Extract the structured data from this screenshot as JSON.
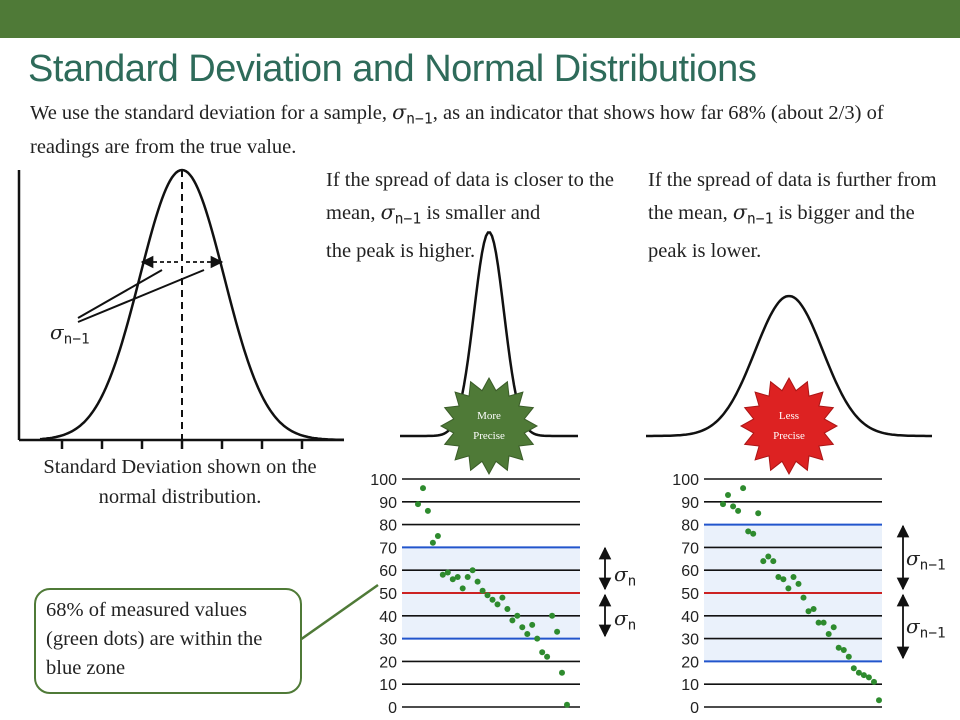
{
  "slide": {
    "title": "Standard Deviation and Normal Distributions",
    "intro_part1": "We use the standard deviation for a sample,",
    "intro_part2": ", as an indicator that shows how far 68% (about 2/3) of readings are from the true value.",
    "sigma_symbol": "σ",
    "sub_n_minus_1": "n−1",
    "sub_n": "n",
    "left_para_part1": "If the spread of data is closer to the mean,",
    "left_para_part2": "is smaller and",
    "left_para_part3": "the peak is higher.",
    "right_para_part1": "If the spread of data is further from the mean,",
    "right_para_part2": "is bigger and the peak is lower.",
    "caption": "Standard Deviation shown on the normal distribution.",
    "callout": "68% of measured values (green dots) are within the blue zone",
    "badge_more_line1": "More",
    "badge_more_line2": "Precise",
    "badge_less_line1": "Less",
    "badge_less_line2": "Precise"
  },
  "axis_ticks": [
    "100",
    "90",
    "80",
    "70",
    "60",
    "50",
    "40",
    "30",
    "20",
    "10",
    "0"
  ],
  "colors": {
    "green_bar": "#4f7a37",
    "title": "#2e6b5a",
    "dot": "#2e8b2e",
    "band_blue": "#2255cc",
    "mean_red": "#cc2222",
    "blue_zone": "#eaf1fb",
    "badge_more": "#4f7a37",
    "badge_less": "#dd2222"
  },
  "chart_data": [
    {
      "type": "scatter",
      "name": "More Precise",
      "band": [
        30,
        70
      ],
      "mean": 50,
      "values": [
        89,
        96,
        86,
        72,
        75,
        58,
        59,
        56,
        57,
        52,
        57,
        60,
        55,
        51,
        49,
        47,
        45,
        48,
        43,
        38,
        40,
        35,
        32,
        36,
        30,
        24,
        22,
        40,
        33,
        15,
        1
      ]
    },
    {
      "type": "scatter",
      "name": "Less Precise",
      "band": [
        20,
        80
      ],
      "mean": 50,
      "values": [
        89,
        93,
        88,
        86,
        96,
        77,
        76,
        85,
        64,
        66,
        64,
        57,
        56,
        52,
        57,
        54,
        48,
        42,
        43,
        37,
        37,
        32,
        35,
        26,
        25,
        22,
        17,
        15,
        14,
        13,
        11,
        3
      ]
    }
  ]
}
